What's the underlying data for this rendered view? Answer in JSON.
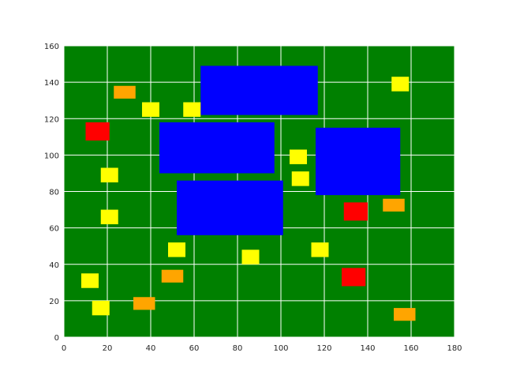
{
  "chart_data": {
    "type": "scatter",
    "title": "",
    "xlabel": "",
    "ylabel": "",
    "xlim": [
      0,
      180
    ],
    "ylim": [
      0,
      160
    ],
    "xticks": [
      0,
      20,
      40,
      60,
      80,
      100,
      120,
      140,
      160,
      180
    ],
    "yticks": [
      0,
      20,
      40,
      60,
      80,
      100,
      120,
      140,
      160
    ],
    "grid": true,
    "background_color": "#008000",
    "grid_color": "#ffffff",
    "rects": [
      {
        "x": 63,
        "y": 122,
        "w": 54,
        "h": 27,
        "color": "#0000ff"
      },
      {
        "x": 44,
        "y": 90,
        "w": 53,
        "h": 28,
        "color": "#0000ff"
      },
      {
        "x": 116,
        "y": 78,
        "w": 39,
        "h": 37,
        "color": "#0000ff"
      },
      {
        "x": 52,
        "y": 56,
        "w": 49,
        "h": 30,
        "color": "#0000ff"
      },
      {
        "x": 10,
        "y": 108,
        "w": 11,
        "h": 10,
        "color": "#ff0000"
      },
      {
        "x": 129,
        "y": 64,
        "w": 11,
        "h": 10,
        "color": "#ff0000"
      },
      {
        "x": 128,
        "y": 28,
        "w": 11,
        "h": 10,
        "color": "#ff0000"
      },
      {
        "x": 23,
        "y": 131,
        "w": 10,
        "h": 7,
        "color": "#ffa500"
      },
      {
        "x": 147,
        "y": 69,
        "w": 10,
        "h": 7,
        "color": "#ffa500"
      },
      {
        "x": 45,
        "y": 30,
        "w": 10,
        "h": 7,
        "color": "#ffa500"
      },
      {
        "x": 32,
        "y": 15,
        "w": 10,
        "h": 7,
        "color": "#ffa500"
      },
      {
        "x": 152,
        "y": 9,
        "w": 10,
        "h": 7,
        "color": "#ffa500"
      },
      {
        "x": 36,
        "y": 121,
        "w": 8,
        "h": 8,
        "color": "#ffff00"
      },
      {
        "x": 55,
        "y": 121,
        "w": 8,
        "h": 8,
        "color": "#ffff00"
      },
      {
        "x": 151,
        "y": 135,
        "w": 8,
        "h": 8,
        "color": "#ffff00"
      },
      {
        "x": 104,
        "y": 95,
        "w": 8,
        "h": 8,
        "color": "#ffff00"
      },
      {
        "x": 17,
        "y": 85,
        "w": 8,
        "h": 8,
        "color": "#ffff00"
      },
      {
        "x": 105,
        "y": 83,
        "w": 8,
        "h": 8,
        "color": "#ffff00"
      },
      {
        "x": 17,
        "y": 62,
        "w": 8,
        "h": 8,
        "color": "#ffff00"
      },
      {
        "x": 48,
        "y": 44,
        "w": 8,
        "h": 8,
        "color": "#ffff00"
      },
      {
        "x": 82,
        "y": 40,
        "w": 8,
        "h": 8,
        "color": "#ffff00"
      },
      {
        "x": 114,
        "y": 44,
        "w": 8,
        "h": 8,
        "color": "#ffff00"
      },
      {
        "x": 8,
        "y": 27,
        "w": 8,
        "h": 8,
        "color": "#ffff00"
      },
      {
        "x": 13,
        "y": 12,
        "w": 8,
        "h": 8,
        "color": "#ffff00"
      }
    ]
  }
}
